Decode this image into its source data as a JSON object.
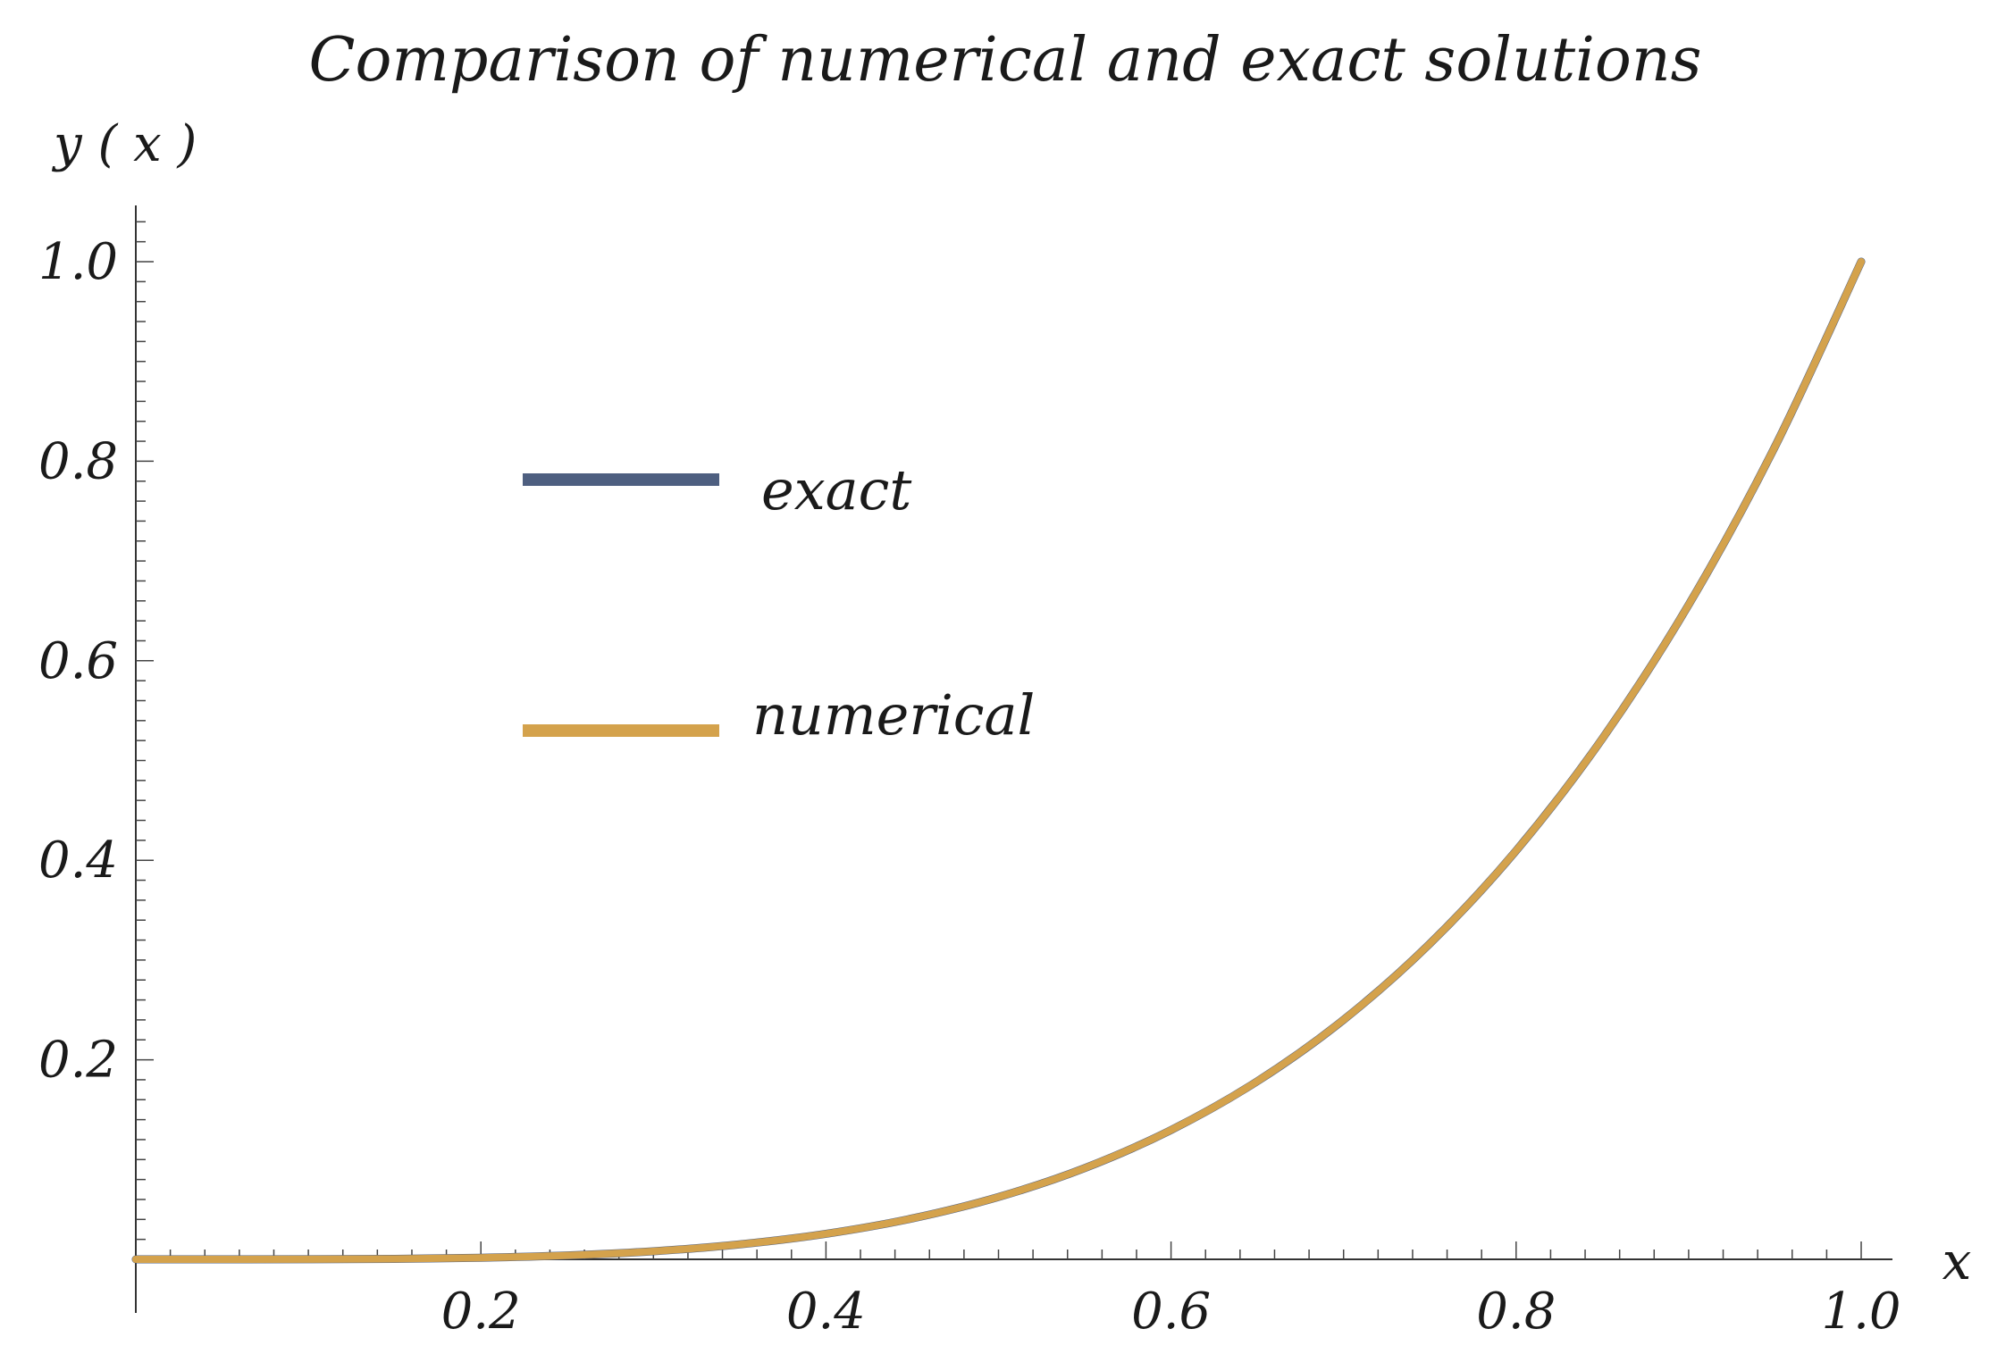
{
  "chart_data": {
    "type": "line",
    "title": "Comparison of numerical and exact solutions",
    "xlabel": "x",
    "ylabel": "y ( x )",
    "xlim": [
      0,
      1.02
    ],
    "ylim": [
      0,
      1.05
    ],
    "x_ticks": [
      0.2,
      0.4,
      0.6,
      0.8,
      1.0
    ],
    "x_tick_labels": [
      "0.2",
      "0.4",
      "0.6",
      "0.8",
      "1.0"
    ],
    "y_ticks": [
      0.2,
      0.4,
      0.6,
      0.8,
      1.0
    ],
    "y_tick_labels": [
      "0.2",
      "0.4",
      "0.6",
      "0.8",
      "1.0"
    ],
    "grid": false,
    "legend_position": "upper-left-center",
    "series": [
      {
        "name": "exact",
        "color": "#4e5f80",
        "x": [
          0,
          0.05,
          0.1,
          0.15,
          0.2,
          0.25,
          0.3,
          0.35,
          0.4,
          0.45,
          0.5,
          0.55,
          0.6,
          0.65,
          0.7,
          0.75,
          0.8,
          0.85,
          0.9,
          0.95,
          1.0
        ],
        "y": [
          0,
          0.0,
          0.0001,
          0.0005,
          0.0016,
          0.0039,
          0.0081,
          0.015,
          0.0256,
          0.041,
          0.0625,
          0.0915,
          0.1296,
          0.1785,
          0.2401,
          0.3164,
          0.4096,
          0.522,
          0.6561,
          0.8145,
          1.0
        ]
      },
      {
        "name": "numerical",
        "color": "#d4a24c",
        "x": [
          0,
          0.05,
          0.1,
          0.15,
          0.2,
          0.25,
          0.3,
          0.35,
          0.4,
          0.45,
          0.5,
          0.55,
          0.6,
          0.65,
          0.7,
          0.75,
          0.8,
          0.85,
          0.9,
          0.95,
          1.0
        ],
        "y": [
          0,
          0.0,
          0.0001,
          0.0005,
          0.0016,
          0.0039,
          0.0081,
          0.015,
          0.0256,
          0.041,
          0.0625,
          0.0915,
          0.1296,
          0.1785,
          0.2401,
          0.3164,
          0.4096,
          0.522,
          0.6561,
          0.8145,
          1.0
        ]
      }
    ]
  }
}
